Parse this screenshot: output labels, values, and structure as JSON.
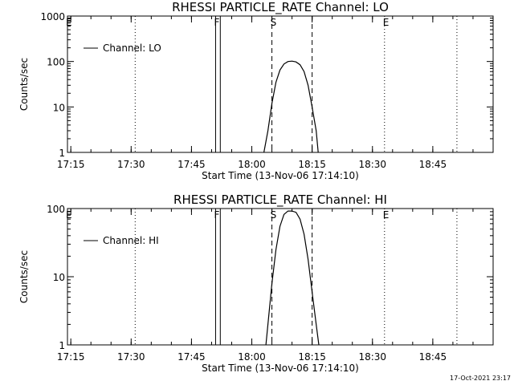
{
  "footer_timestamp": "17-Oct-2021 23:17",
  "chart_data": [
    {
      "type": "line",
      "title": "RHESSI PARTICLE_RATE Channel: LO",
      "xlabel": "Start Time (13-Nov-06 17:14:10)",
      "ylabel": "Counts/sec",
      "y_scale": "log",
      "ylim": [
        1,
        1000
      ],
      "xlim": [
        "17:14:10",
        "19:00:00"
      ],
      "x_ticks": [
        "17:15",
        "17:30",
        "17:45",
        "18:00",
        "18:15",
        "18:30",
        "18:45"
      ],
      "y_ticks": [
        "1",
        "10",
        "100",
        "1000"
      ],
      "legend": {
        "placement": "top-left",
        "entries": [
          "Channel: LO"
        ]
      },
      "series": [
        {
          "name": "Channel: LO",
          "x": [
            "18:03",
            "18:04",
            "18:05",
            "18:06",
            "18:07",
            "18:08",
            "18:09",
            "18:10",
            "18:11",
            "18:12",
            "18:13",
            "18:14",
            "18:15",
            "18:16",
            "18:16:30"
          ],
          "y": [
            1,
            3,
            12,
            35,
            65,
            88,
            100,
            102,
            98,
            85,
            60,
            30,
            10,
            3,
            1
          ]
        }
      ],
      "markers": [
        {
          "label": "E",
          "time": "17:14:10",
          "style": "dotted"
        },
        {
          "label": "",
          "time": "17:31:00",
          "style": "dotted"
        },
        {
          "label": "F",
          "time": "17:51:00",
          "style": "solid"
        },
        {
          "label": "",
          "time": "17:52:10",
          "style": "solid"
        },
        {
          "label": "S",
          "time": "18:05:00",
          "style": "dashed"
        },
        {
          "label": "",
          "time": "18:15:00",
          "style": "dashed"
        },
        {
          "label": "E",
          "time": "18:33:00",
          "style": "dotted"
        },
        {
          "label": "",
          "time": "18:51:00",
          "style": "dotted"
        }
      ]
    },
    {
      "type": "line",
      "title": "RHESSI PARTICLE_RATE Channel: HI",
      "xlabel": "Start Time (13-Nov-06 17:14:10)",
      "ylabel": "Counts/sec",
      "y_scale": "log",
      "ylim": [
        1,
        100
      ],
      "xlim": [
        "17:14:10",
        "19:00:00"
      ],
      "x_ticks": [
        "17:15",
        "17:30",
        "17:45",
        "18:00",
        "18:15",
        "18:30",
        "18:45"
      ],
      "y_ticks": [
        "1",
        "10",
        "100"
      ],
      "legend": {
        "placement": "top-left",
        "entries": [
          "Channel: HI"
        ]
      },
      "series": [
        {
          "name": "Channel: HI",
          "x": [
            "18:03:30",
            "18:04",
            "18:05",
            "18:06",
            "18:07",
            "18:08",
            "18:09",
            "18:10",
            "18:11",
            "18:12",
            "18:13",
            "18:14",
            "18:15",
            "18:16",
            "18:16:40"
          ],
          "y": [
            1,
            2,
            8,
            25,
            55,
            82,
            92,
            92,
            88,
            70,
            42,
            18,
            6,
            2,
            1
          ]
        }
      ],
      "markers": [
        {
          "label": "E",
          "time": "17:14:10",
          "style": "dotted"
        },
        {
          "label": "",
          "time": "17:31:00",
          "style": "dotted"
        },
        {
          "label": "F",
          "time": "17:51:00",
          "style": "solid"
        },
        {
          "label": "",
          "time": "17:52:10",
          "style": "solid"
        },
        {
          "label": "S",
          "time": "18:05:00",
          "style": "dashed"
        },
        {
          "label": "",
          "time": "18:15:00",
          "style": "dashed"
        },
        {
          "label": "E",
          "time": "18:33:00",
          "style": "dotted"
        },
        {
          "label": "",
          "time": "18:51:00",
          "style": "dotted"
        }
      ]
    }
  ]
}
